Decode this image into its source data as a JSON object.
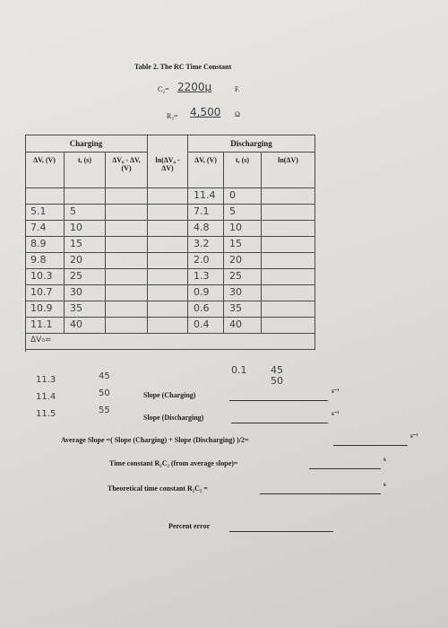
{
  "title": "Table 2. The RC Time Constant",
  "capacitance": {
    "label": "C₂=",
    "value": "2200µ",
    "unit": "F."
  },
  "resistance": {
    "label": "R₂=",
    "value": "4,500",
    "unit": "Ω"
  },
  "table": {
    "groups": [
      "Charging",
      "Discharging"
    ],
    "columns": [
      "ΔV, (V)",
      "t, (s)",
      "ΔV₀ - ΔV, (V)",
      "ln(ΔV₀ - ΔV)",
      "ΔV, (V)",
      "t, (s)",
      "ln(ΔV)"
    ],
    "rows": [
      [
        null,
        null,
        null,
        null,
        "11.4",
        "0",
        null
      ],
      [
        "5.1",
        "5",
        null,
        null,
        "7.1",
        "5",
        null
      ],
      [
        "7.4",
        "10",
        null,
        null,
        "4.8",
        "10",
        null
      ],
      [
        "8.9",
        "15",
        null,
        null,
        "3.2",
        "15",
        null
      ],
      [
        "9.8",
        "20",
        null,
        null,
        "2.0",
        "20",
        null
      ],
      [
        "10.3",
        "25",
        null,
        null,
        "1.3",
        "25",
        null
      ],
      [
        "10.7",
        "30",
        null,
        null,
        "0.9",
        "30",
        null
      ],
      [
        "10.9",
        "35",
        null,
        null,
        "0.6",
        "35",
        null
      ],
      [
        "11.1",
        "40",
        null,
        null,
        "0.4",
        "40",
        null
      ]
    ],
    "footer": "ΔV₀="
  },
  "extra_charging": [
    [
      "11.3",
      "45"
    ],
    [
      "11.4",
      "50"
    ],
    [
      "11.5",
      "55"
    ]
  ],
  "extra_discharging": [
    [
      "0.1",
      "45"
    ],
    [
      null,
      "50"
    ]
  ],
  "calculations": [
    {
      "label": "Slope (Charging)",
      "unit": "s⁻¹"
    },
    {
      "label": "Slope (Discharging)",
      "unit": "s⁻¹"
    },
    {
      "label": "Average Slope =( Slope (Charging) + Slope (Discharging) )/2=",
      "unit": "s⁻¹"
    },
    {
      "label": "Time constant R₂C₂  (from average slope)=",
      "unit": "s"
    },
    {
      "label": "Theoretical time constant R₂C₂  =",
      "unit": "s"
    },
    {
      "label": "Percent error"
    }
  ]
}
